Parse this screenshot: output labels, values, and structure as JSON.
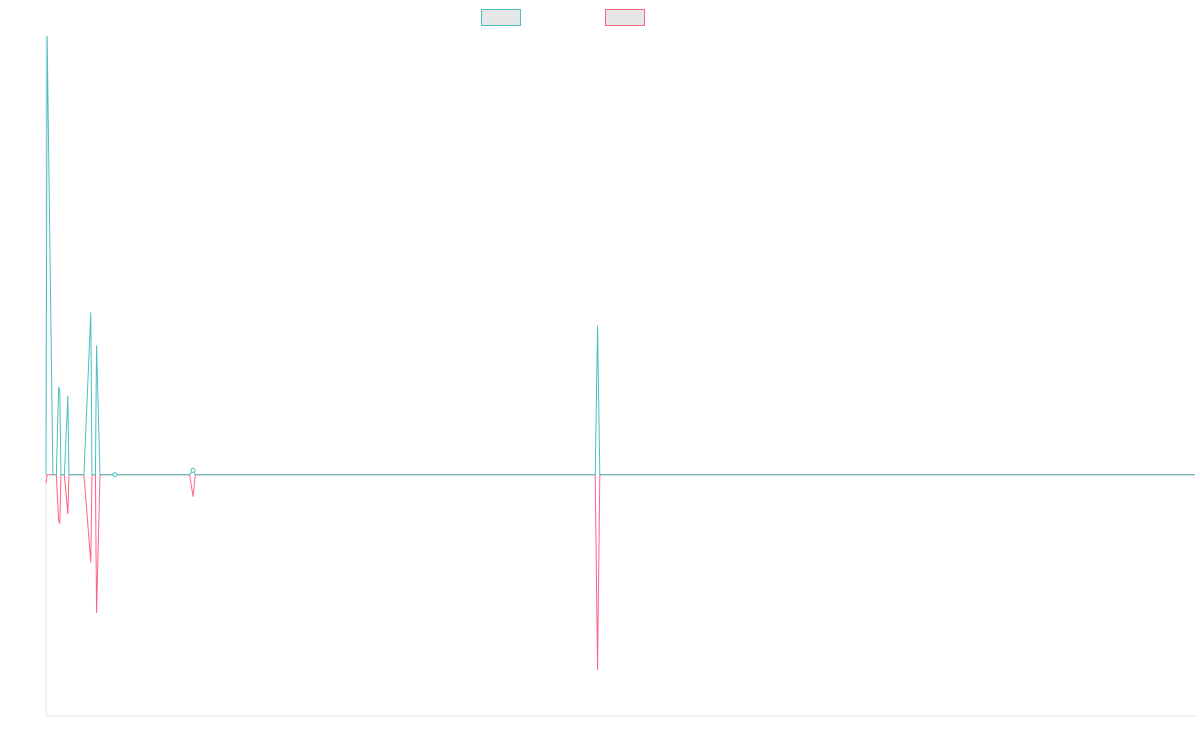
{
  "chart_data": {
    "type": "line",
    "title": "",
    "xlabel": "",
    "ylabel": "",
    "grid": false,
    "legend_position": "top-center",
    "legend_labels_visible": false,
    "xlim": [
      0,
      100
    ],
    "ylim": [
      -1.1,
      2.0
    ],
    "x": [
      0,
      0.1,
      0.6,
      0.9,
      1.1,
      1.2,
      1.3,
      1.6,
      1.9,
      2.0,
      2.1,
      2.4,
      3.3,
      3.9,
      4.0,
      4.3,
      4.4,
      4.7,
      6.0,
      6.1,
      12.5,
      12.8,
      13.0,
      47.8,
      48.0,
      48.2,
      100
    ],
    "series": [
      {
        "color": "#4bc0c0",
        "values": [
          0,
          2.0,
          0,
          0,
          0.4,
          0.38,
          0,
          0,
          0.36,
          0,
          0,
          0,
          0,
          0.74,
          0,
          0,
          0.59,
          0,
          0,
          0,
          0,
          0.02,
          0,
          0,
          0.68,
          0,
          0
        ]
      },
      {
        "color": "#ff6384",
        "values": [
          -0.04,
          0,
          0,
          0,
          -0.21,
          -0.22,
          0,
          0,
          -0.18,
          0,
          0,
          0,
          0,
          -0.4,
          0,
          0,
          -0.63,
          0,
          0,
          0,
          0,
          -0.1,
          0,
          0,
          -0.89,
          0,
          0
        ]
      }
    ]
  }
}
